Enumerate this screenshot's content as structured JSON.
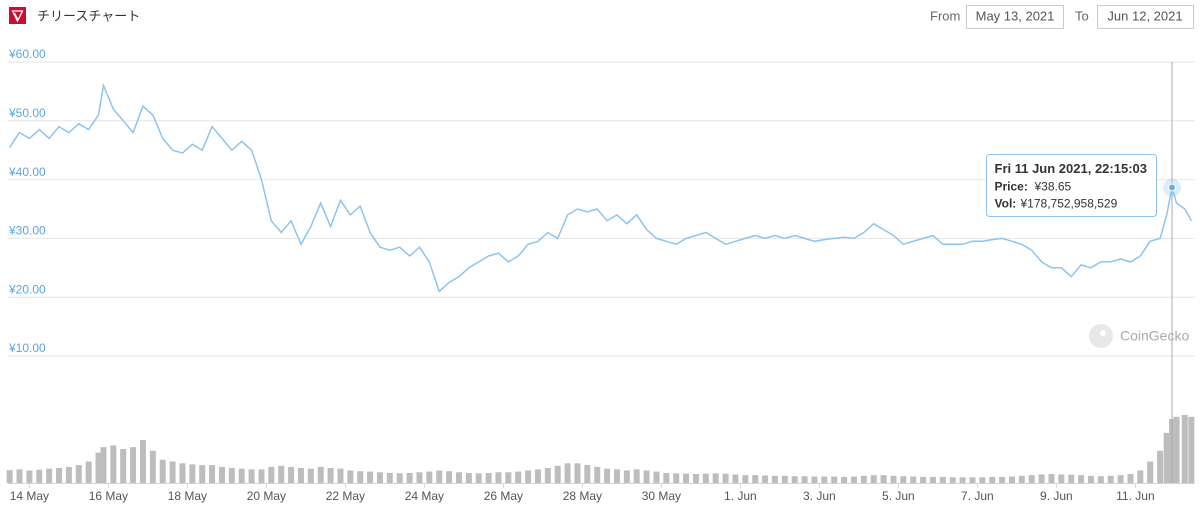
{
  "header": {
    "title": "チリースチャート",
    "from_label": "From",
    "from_date": "May 13, 2021",
    "to_label": "To",
    "to_date": "Jun 12, 2021"
  },
  "watermark": "CoinGecko",
  "chart_data": {
    "type": "line",
    "x": [
      "2021-05-13T12:00",
      "2021-05-13T18:00",
      "2021-05-14T00:00",
      "2021-05-14T06:00",
      "2021-05-14T12:00",
      "2021-05-14T18:00",
      "2021-05-15T00:00",
      "2021-05-15T06:00",
      "2021-05-15T12:00",
      "2021-05-15T18:00",
      "2021-05-15T21:00",
      "2021-05-16T03:00",
      "2021-05-16T09:00",
      "2021-05-16T15:00",
      "2021-05-16T21:00",
      "2021-05-17T03:00",
      "2021-05-17T09:00",
      "2021-05-17T15:00",
      "2021-05-17T21:00",
      "2021-05-18T03:00",
      "2021-05-18T09:00",
      "2021-05-18T15:00",
      "2021-05-18T21:00",
      "2021-05-19T03:00",
      "2021-05-19T09:00",
      "2021-05-19T15:00",
      "2021-05-19T21:00",
      "2021-05-20T03:00",
      "2021-05-20T09:00",
      "2021-05-20T15:00",
      "2021-05-20T21:00",
      "2021-05-21T03:00",
      "2021-05-21T09:00",
      "2021-05-21T15:00",
      "2021-05-21T21:00",
      "2021-05-22T03:00",
      "2021-05-22T09:00",
      "2021-05-22T15:00",
      "2021-05-22T21:00",
      "2021-05-23T03:00",
      "2021-05-23T09:00",
      "2021-05-23T15:00",
      "2021-05-23T21:00",
      "2021-05-24T03:00",
      "2021-05-24T09:00",
      "2021-05-24T15:00",
      "2021-05-24T21:00",
      "2021-05-25T03:00",
      "2021-05-25T09:00",
      "2021-05-25T15:00",
      "2021-05-25T21:00",
      "2021-05-26T03:00",
      "2021-05-26T09:00",
      "2021-05-26T15:00",
      "2021-05-26T21:00",
      "2021-05-27T03:00",
      "2021-05-27T09:00",
      "2021-05-27T15:00",
      "2021-05-27T21:00",
      "2021-05-28T03:00",
      "2021-05-28T09:00",
      "2021-05-28T15:00",
      "2021-05-28T21:00",
      "2021-05-29T03:00",
      "2021-05-29T09:00",
      "2021-05-29T15:00",
      "2021-05-29T21:00",
      "2021-05-30T03:00",
      "2021-05-30T09:00",
      "2021-05-30T15:00",
      "2021-05-30T21:00",
      "2021-05-31T03:00",
      "2021-05-31T09:00",
      "2021-05-31T15:00",
      "2021-05-31T21:00",
      "2021-06-01T03:00",
      "2021-06-01T09:00",
      "2021-06-01T15:00",
      "2021-06-01T21:00",
      "2021-06-02T03:00",
      "2021-06-02T09:00",
      "2021-06-02T15:00",
      "2021-06-02T21:00",
      "2021-06-03T03:00",
      "2021-06-03T09:00",
      "2021-06-03T15:00",
      "2021-06-03T21:00",
      "2021-06-04T03:00",
      "2021-06-04T09:00",
      "2021-06-04T15:00",
      "2021-06-04T21:00",
      "2021-06-05T03:00",
      "2021-06-05T09:00",
      "2021-06-05T15:00",
      "2021-06-05T21:00",
      "2021-06-06T03:00",
      "2021-06-06T09:00",
      "2021-06-06T15:00",
      "2021-06-06T21:00",
      "2021-06-07T03:00",
      "2021-06-07T09:00",
      "2021-06-07T15:00",
      "2021-06-07T21:00",
      "2021-06-08T03:00",
      "2021-06-08T09:00",
      "2021-06-08T15:00",
      "2021-06-08T21:00",
      "2021-06-09T03:00",
      "2021-06-09T09:00",
      "2021-06-09T15:00",
      "2021-06-09T21:00",
      "2021-06-10T03:00",
      "2021-06-10T09:00",
      "2021-06-10T15:00",
      "2021-06-10T21:00",
      "2021-06-11T03:00",
      "2021-06-11T09:00",
      "2021-06-11T15:00",
      "2021-06-11T19:00",
      "2021-06-11T22:15:03",
      "2021-06-12T01:00",
      "2021-06-12T06:00",
      "2021-06-12T10:00"
    ],
    "price": {
      "color": "#8cc4f0",
      "values": [
        45.5,
        48,
        47,
        48.5,
        47,
        49,
        48,
        49.5,
        48.5,
        51,
        56,
        52,
        50,
        48,
        52.5,
        51,
        47,
        45,
        44.5,
        46,
        45,
        49,
        47,
        45,
        46.5,
        45,
        40,
        33,
        31,
        33,
        29,
        32,
        36,
        32,
        36.5,
        34,
        35.5,
        31,
        28.5,
        28,
        28.5,
        27,
        28.5,
        26,
        21,
        22.5,
        23.5,
        25,
        26,
        27,
        27.5,
        26,
        27,
        29,
        29.5,
        31,
        30,
        34,
        35,
        34.5,
        35,
        33,
        34,
        32.5,
        34,
        31.5,
        30,
        29.5,
        29,
        30,
        30.5,
        31,
        30,
        29,
        29.5,
        30,
        30.5,
        30,
        30.5,
        30,
        30.5,
        30,
        29.5,
        29.8,
        30,
        30.2,
        30,
        31,
        32.5,
        31.5,
        30.5,
        29,
        29.5,
        30,
        30.5,
        29,
        29,
        29,
        29.5,
        29.5,
        29.8,
        30,
        29.5,
        29,
        28,
        26,
        25,
        25,
        23.5,
        25.5,
        25,
        26,
        26,
        26.5,
        26,
        27,
        29.5,
        30,
        34,
        38.65,
        36,
        35,
        33
      ]
    },
    "volume": {
      "color": "#bdbdbd",
      "values": [
        36000000000,
        38000000000,
        35000000000,
        37000000000,
        40000000000,
        42000000000,
        45000000000,
        50000000000,
        60000000000,
        85000000000,
        100000000000,
        105000000000,
        95000000000,
        100000000000,
        120000000000,
        90000000000,
        65000000000,
        60000000000,
        55000000000,
        52000000000,
        50000000000,
        50000000000,
        45000000000,
        42000000000,
        40000000000,
        38000000000,
        38000000000,
        45000000000,
        48000000000,
        45000000000,
        42000000000,
        40000000000,
        45000000000,
        42000000000,
        40000000000,
        35000000000,
        33000000000,
        32000000000,
        30000000000,
        28000000000,
        27000000000,
        28000000000,
        30000000000,
        32000000000,
        35000000000,
        33000000000,
        30000000000,
        28000000000,
        27000000000,
        28000000000,
        30000000000,
        30000000000,
        32000000000,
        35000000000,
        38000000000,
        42000000000,
        48000000000,
        55000000000,
        55000000000,
        50000000000,
        45000000000,
        40000000000,
        38000000000,
        35000000000,
        38000000000,
        35000000000,
        32000000000,
        28000000000,
        27000000000,
        26000000000,
        25000000000,
        26000000000,
        27000000000,
        26000000000,
        24000000000,
        22000000000,
        22000000000,
        21000000000,
        20000000000,
        20000000000,
        19000000000,
        19000000000,
        18000000000,
        18000000000,
        18000000000,
        17000000000,
        18000000000,
        20000000000,
        22000000000,
        22000000000,
        20000000000,
        19000000000,
        18000000000,
        17000000000,
        17000000000,
        17000000000,
        16000000000,
        16000000000,
        16000000000,
        16000000000,
        17000000000,
        17000000000,
        18000000000,
        20000000000,
        22000000000,
        24000000000,
        25000000000,
        24000000000,
        23000000000,
        22000000000,
        20000000000,
        19000000000,
        20000000000,
        22000000000,
        25000000000,
        35000000000,
        60000000000,
        90000000000,
        140000000000,
        178752958529,
        185000000000,
        190000000000,
        185000000000
      ]
    },
    "xlim": [
      "2021-05-13T11:00",
      "2021-06-12T11:00"
    ],
    "xticks": [
      {
        "value": "2021-05-14T00:00",
        "label": "14 May"
      },
      {
        "value": "2021-05-16T00:00",
        "label": "16 May"
      },
      {
        "value": "2021-05-18T00:00",
        "label": "18 May"
      },
      {
        "value": "2021-05-20T00:00",
        "label": "20 May"
      },
      {
        "value": "2021-05-22T00:00",
        "label": "22 May"
      },
      {
        "value": "2021-05-24T00:00",
        "label": "24 May"
      },
      {
        "value": "2021-05-26T00:00",
        "label": "26 May"
      },
      {
        "value": "2021-05-28T00:00",
        "label": "28 May"
      },
      {
        "value": "2021-05-30T00:00",
        "label": "30 May"
      },
      {
        "value": "2021-06-01T00:00",
        "label": "1. Jun"
      },
      {
        "value": "2021-06-03T00:00",
        "label": "3. Jun"
      },
      {
        "value": "2021-06-05T00:00",
        "label": "5. Jun"
      },
      {
        "value": "2021-06-07T00:00",
        "label": "7. Jun"
      },
      {
        "value": "2021-06-09T00:00",
        "label": "9. Jun"
      },
      {
        "value": "2021-06-11T00:00",
        "label": "11. Jun"
      }
    ],
    "ylim": [
      10,
      60
    ],
    "yticks": [
      {
        "value": 10,
        "label": "¥10.00"
      },
      {
        "value": 20,
        "label": "¥20.00"
      },
      {
        "value": 30,
        "label": "¥30.00"
      },
      {
        "value": 40,
        "label": "¥40.00"
      },
      {
        "value": 50,
        "label": "¥50.00"
      },
      {
        "value": 60,
        "label": "¥60.00"
      }
    ],
    "grid": true,
    "tooltip": {
      "index": 119,
      "date": "Fri 11 Jun 2021, 22:15:03",
      "price_label": "Price:",
      "price": "¥38.65",
      "vol_label": "Vol:",
      "vol": "¥178,752,958,529"
    }
  }
}
